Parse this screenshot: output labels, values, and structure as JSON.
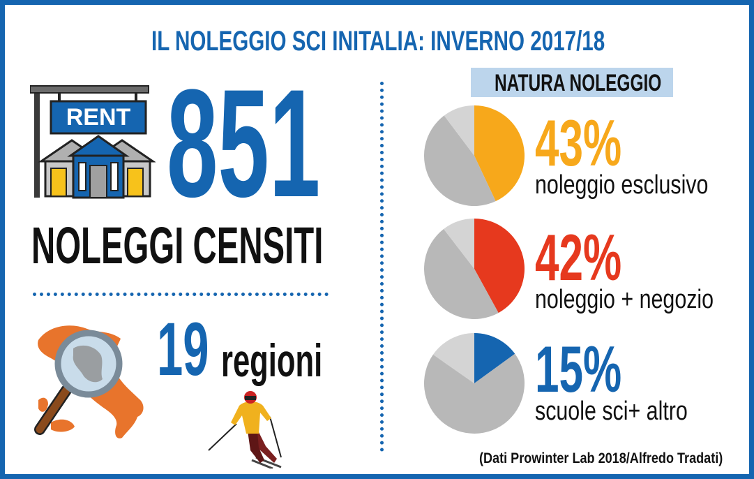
{
  "title": "IL NOLEGGIO SCI INITALIA: INVERNO 2017/18",
  "rent_sign_text": "RENT",
  "big_number": "851",
  "big_caption": "NOLEGGI CENSITI",
  "regions": {
    "number": "19",
    "label": "regioni"
  },
  "section_header": "NATURA NOLEGGIO",
  "source": "(Dati Prowinter Lab 2018/Alfredo Tradati)",
  "colors": {
    "blue": "#1565b0",
    "orange": "#f7a81b",
    "red": "#e6391e",
    "gray_light": "#d4d4d4",
    "gray_mid": "#b8b8b8",
    "gray_dark": "#a8a8a8",
    "header_bg": "#bcd5ec"
  },
  "chart_data": {
    "type": "pie",
    "title": "NATURA NOLEGGIO",
    "items": [
      {
        "name": "noleggio esclusivo",
        "percent_label": "43%",
        "value": 43,
        "color": "#f7a81b"
      },
      {
        "name": "noleggio + negozio",
        "percent_label": "42%",
        "value": 42,
        "color": "#e6391e"
      },
      {
        "name": "scuole sci+ altro",
        "percent_label": "15%",
        "value": 15,
        "color": "#1565b0"
      }
    ]
  }
}
